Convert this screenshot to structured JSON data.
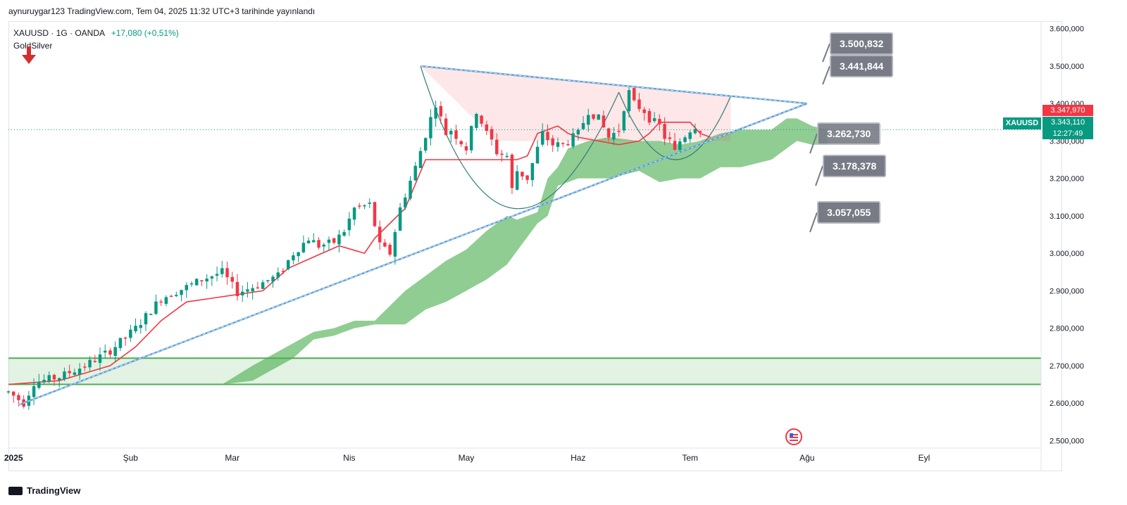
{
  "publication": "aynuruygar123 TradingView.com, Tem 04, 2025 11:32 UTC+3 tarihinde yayınlandı",
  "legend": {
    "symbol": "XAUUSD · 1G · OANDA",
    "change": "+17,080 (+0,51%)",
    "indicator": "GoldSilver"
  },
  "price_tags": {
    "red": "3.347,970",
    "green_price": "3.343,110",
    "countdown": "12:27:49",
    "symbol_tag": "XAUUSD"
  },
  "callouts": [
    "3.500,832",
    "3.441,844",
    "3.262,730",
    "3.178,378",
    "3.057,055"
  ],
  "footer": "TradingView",
  "colors": {
    "up": "#089981",
    "down": "#f23645",
    "cloud": "#4caf50",
    "trend": "#5b9bd5",
    "tenkan": "#f23645"
  },
  "chart_data": {
    "type": "candlestick",
    "y_ticks": [
      "3.600,000",
      "3.500,000",
      "3.400,000",
      "3.300,000",
      "3.200,000",
      "3.100,000",
      "3.000,000",
      "2.900,000",
      "2.800,000",
      "2.700,000",
      "2.600,000",
      "2.500,000"
    ],
    "x_ticks": [
      "2025",
      "Şub",
      "Mar",
      "Nis",
      "May",
      "Haz",
      "Tem",
      "Ağu",
      "Eyl"
    ],
    "ylim": [
      2480,
      3620
    ],
    "support_zone": [
      2650,
      2720
    ],
    "x_range": [
      0,
      203
    ],
    "month_index": {
      "2025": 1,
      "Şub": 24,
      "Mar": 44,
      "Nis": 67,
      "May": 90,
      "Haz": 112,
      "Tem": 134,
      "Ağu": 157,
      "Eyl": 180
    },
    "anchors": [
      [
        0,
        2630
      ],
      [
        3,
        2600
      ],
      [
        5,
        2655
      ],
      [
        10,
        2670
      ],
      [
        15,
        2700
      ],
      [
        20,
        2740
      ],
      [
        25,
        2800
      ],
      [
        30,
        2880
      ],
      [
        35,
        2910
      ],
      [
        38,
        2930
      ],
      [
        42,
        2950
      ],
      [
        45,
        2895
      ],
      [
        48,
        2910
      ],
      [
        53,
        2940
      ],
      [
        56,
        3000
      ],
      [
        59,
        3040
      ],
      [
        61,
        3020
      ],
      [
        64,
        3030
      ],
      [
        66,
        3060
      ],
      [
        68,
        3120
      ],
      [
        71,
        3130
      ],
      [
        73,
        3020
      ],
      [
        75,
        3000
      ],
      [
        77,
        3120
      ],
      [
        80,
        3230
      ],
      [
        83,
        3360
      ],
      [
        84,
        3400
      ],
      [
        86,
        3320
      ],
      [
        87,
        3330
      ],
      [
        90,
        3280
      ],
      [
        92,
        3380
      ],
      [
        94,
        3320
      ],
      [
        95,
        3300
      ],
      [
        96,
        3270
      ],
      [
        98,
        3260
      ],
      [
        99,
        3170
      ],
      [
        100,
        3220
      ],
      [
        102,
        3200
      ],
      [
        105,
        3320
      ],
      [
        107,
        3290
      ],
      [
        109,
        3290
      ],
      [
        112,
        3320
      ],
      [
        114,
        3380
      ],
      [
        116,
        3360
      ],
      [
        118,
        3310
      ],
      [
        120,
        3330
      ],
      [
        121,
        3390
      ],
      [
        122,
        3430
      ],
      [
        123,
        3400
      ],
      [
        125,
        3380
      ],
      [
        126,
        3360
      ],
      [
        128,
        3340
      ],
      [
        129,
        3310
      ],
      [
        130,
        3300
      ],
      [
        131,
        3270
      ],
      [
        132,
        3300
      ],
      [
        134,
        3330
      ],
      [
        135,
        3340
      ],
      [
        136,
        3330
      ]
    ],
    "tenkan": [
      [
        0,
        2650
      ],
      [
        10,
        2660
      ],
      [
        20,
        2700
      ],
      [
        25,
        2750
      ],
      [
        30,
        2820
      ],
      [
        35,
        2870
      ],
      [
        40,
        2880
      ],
      [
        45,
        2890
      ],
      [
        50,
        2900
      ],
      [
        55,
        2960
      ],
      [
        60,
        2990
      ],
      [
        65,
        3020
      ],
      [
        70,
        3000
      ],
      [
        72,
        3040
      ],
      [
        75,
        3080
      ],
      [
        78,
        3120
      ],
      [
        82,
        3250
      ],
      [
        84,
        3250
      ],
      [
        100,
        3250
      ],
      [
        102,
        3260
      ],
      [
        104,
        3320
      ],
      [
        108,
        3340
      ],
      [
        110,
        3320
      ],
      [
        112,
        3310
      ],
      [
        120,
        3290
      ],
      [
        124,
        3300
      ],
      [
        126,
        3320
      ],
      [
        128,
        3350
      ],
      [
        130,
        3350
      ],
      [
        134,
        3350
      ],
      [
        136,
        3320
      ],
      [
        138,
        3310
      ]
    ],
    "cloud_top": [
      [
        42,
        2650
      ],
      [
        48,
        2700
      ],
      [
        52,
        2730
      ],
      [
        56,
        2760
      ],
      [
        60,
        2790
      ],
      [
        64,
        2800
      ],
      [
        68,
        2820
      ],
      [
        72,
        2820
      ],
      [
        78,
        2900
      ],
      [
        82,
        2940
      ],
      [
        86,
        2980
      ],
      [
        90,
        3010
      ],
      [
        94,
        3060
      ],
      [
        96,
        3080
      ],
      [
        98,
        3100
      ],
      [
        100,
        3090
      ],
      [
        104,
        3110
      ],
      [
        106,
        3200
      ],
      [
        108,
        3230
      ],
      [
        110,
        3280
      ],
      [
        114,
        3300
      ],
      [
        118,
        3310
      ],
      [
        124,
        3300
      ],
      [
        128,
        3300
      ],
      [
        132,
        3290
      ],
      [
        136,
        3300
      ],
      [
        140,
        3320
      ],
      [
        144,
        3330
      ],
      [
        150,
        3330
      ],
      [
        153,
        3360
      ],
      [
        155,
        3360
      ],
      [
        158,
        3340
      ],
      [
        161,
        3330
      ]
    ],
    "cloud_bottom": [
      [
        42,
        2650
      ],
      [
        48,
        2660
      ],
      [
        52,
        2690
      ],
      [
        56,
        2720
      ],
      [
        60,
        2770
      ],
      [
        64,
        2780
      ],
      [
        68,
        2800
      ],
      [
        72,
        2810
      ],
      [
        78,
        2810
      ],
      [
        82,
        2850
      ],
      [
        86,
        2870
      ],
      [
        90,
        2900
      ],
      [
        94,
        2930
      ],
      [
        98,
        2970
      ],
      [
        104,
        3080
      ],
      [
        106,
        3100
      ],
      [
        108,
        3180
      ],
      [
        110,
        3190
      ],
      [
        112,
        3200
      ],
      [
        118,
        3200
      ],
      [
        124,
        3220
      ],
      [
        128,
        3190
      ],
      [
        132,
        3200
      ],
      [
        136,
        3200
      ],
      [
        140,
        3230
      ],
      [
        144,
        3230
      ],
      [
        150,
        3250
      ],
      [
        155,
        3300
      ],
      [
        158,
        3290
      ],
      [
        160,
        3290
      ],
      [
        161,
        3290
      ]
    ],
    "triangle_upper": [
      [
        81,
        3500
      ],
      [
        157,
        3400
      ]
    ],
    "triangle_lower": [
      [
        2,
        2595
      ],
      [
        157,
        3400
      ]
    ],
    "cup_left": [
      [
        81,
        3500
      ],
      [
        98,
        3120
      ],
      [
        120,
        3430
      ]
    ],
    "cup_right": [
      [
        120,
        3430
      ],
      [
        131,
        3250
      ],
      [
        142,
        3420
      ]
    ]
  }
}
